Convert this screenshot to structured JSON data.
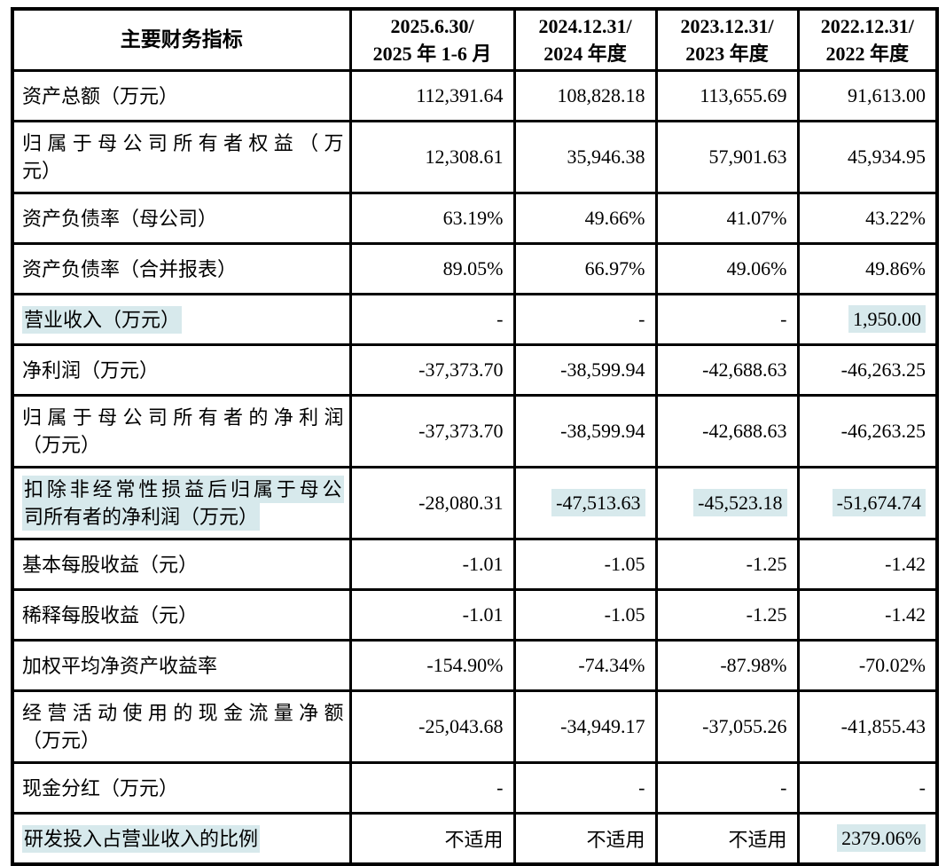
{
  "colors": {
    "highlight": "#d7e9ec",
    "border": "#000000",
    "text": "#000000",
    "background": "#ffffff"
  },
  "table": {
    "header": {
      "indicator": "主要财务指标",
      "periods": [
        {
          "line1": "2025.6.30/",
          "line2": "2025 年 1-6 月"
        },
        {
          "line1": "2024.12.31/",
          "line2": "2024 年度"
        },
        {
          "line1": "2023.12.31/",
          "line2": "2023 年度"
        },
        {
          "line1": "2022.12.31/",
          "line2": "2022 年度"
        }
      ]
    },
    "rows": [
      {
        "id": "total-assets",
        "label_lines": [
          "资产总额（万元）"
        ],
        "label_highlight": false,
        "values": [
          "112,391.64",
          "108,828.18",
          "113,655.69",
          "91,613.00"
        ],
        "value_highlights": [
          false,
          false,
          false,
          false
        ]
      },
      {
        "id": "equity-attributable-to-parent",
        "label_lines": [
          "归属于母公司所有者权益（万",
          "元）"
        ],
        "label_highlight": false,
        "values": [
          "12,308.61",
          "35,946.38",
          "57,901.63",
          "45,934.95"
        ],
        "value_highlights": [
          false,
          false,
          false,
          false
        ]
      },
      {
        "id": "debt-ratio-parent",
        "label_lines": [
          "资产负债率（母公司）"
        ],
        "label_highlight": false,
        "values": [
          "63.19%",
          "49.66%",
          "41.07%",
          "43.22%"
        ],
        "value_highlights": [
          false,
          false,
          false,
          false
        ]
      },
      {
        "id": "debt-ratio-consolidated",
        "label_lines": [
          "资产负债率（合并报表）"
        ],
        "label_highlight": false,
        "values": [
          "89.05%",
          "66.97%",
          "49.06%",
          "49.86%"
        ],
        "value_highlights": [
          false,
          false,
          false,
          false
        ]
      },
      {
        "id": "operating-revenue",
        "label_lines": [
          "营业收入（万元）"
        ],
        "label_highlight": true,
        "values": [
          "-",
          "-",
          "-",
          "1,950.00"
        ],
        "value_highlights": [
          false,
          false,
          false,
          true
        ]
      },
      {
        "id": "net-profit",
        "label_lines": [
          "净利润（万元）"
        ],
        "label_highlight": false,
        "values": [
          "-37,373.70",
          "-38,599.94",
          "-42,688.63",
          "-46,263.25"
        ],
        "value_highlights": [
          false,
          false,
          false,
          false
        ]
      },
      {
        "id": "net-profit-attributable-to-parent",
        "label_lines": [
          "归属于母公司所有者的净利润",
          "（万元）"
        ],
        "label_highlight": false,
        "values": [
          "-37,373.70",
          "-38,599.94",
          "-42,688.63",
          "-46,263.25"
        ],
        "value_highlights": [
          false,
          false,
          false,
          false
        ]
      },
      {
        "id": "net-profit-deducting-non-recurring",
        "label_lines": [
          "扣除非经常性损益后归属于母公",
          "司所有者的净利润（万元）"
        ],
        "label_highlight": true,
        "values": [
          "-28,080.31",
          "-47,513.63",
          "-45,523.18",
          "-51,674.74"
        ],
        "value_highlights": [
          false,
          true,
          true,
          true
        ]
      },
      {
        "id": "basic-eps",
        "label_lines": [
          "基本每股收益（元）"
        ],
        "label_highlight": false,
        "values": [
          "-1.01",
          "-1.05",
          "-1.25",
          "-1.42"
        ],
        "value_highlights": [
          false,
          false,
          false,
          false
        ]
      },
      {
        "id": "diluted-eps",
        "label_lines": [
          "稀释每股收益（元）"
        ],
        "label_highlight": false,
        "values": [
          "-1.01",
          "-1.05",
          "-1.25",
          "-1.42"
        ],
        "value_highlights": [
          false,
          false,
          false,
          false
        ]
      },
      {
        "id": "weighted-average-roe",
        "label_lines": [
          "加权平均净资产收益率"
        ],
        "label_highlight": false,
        "values": [
          "-154.90%",
          "-74.34%",
          "-87.98%",
          "-70.02%"
        ],
        "value_highlights": [
          false,
          false,
          false,
          false
        ]
      },
      {
        "id": "net-cash-flow-operating",
        "label_lines": [
          "经营活动使用的现金流量净额",
          "（万元）"
        ],
        "label_highlight": false,
        "values": [
          "-25,043.68",
          "-34,949.17",
          "-37,055.26",
          "-41,855.43"
        ],
        "value_highlights": [
          false,
          false,
          false,
          false
        ]
      },
      {
        "id": "cash-dividend",
        "label_lines": [
          "现金分红（万元）"
        ],
        "label_highlight": false,
        "values": [
          "-",
          "-",
          "-",
          "-"
        ],
        "value_highlights": [
          false,
          false,
          false,
          false
        ]
      },
      {
        "id": "rd-expense-to-revenue-ratio",
        "label_lines": [
          "研发投入占营业收入的比例"
        ],
        "label_highlight": true,
        "values": [
          "不适用",
          "不适用",
          "不适用",
          "2379.06%"
        ],
        "value_highlights": [
          false,
          false,
          false,
          true
        ]
      }
    ]
  }
}
